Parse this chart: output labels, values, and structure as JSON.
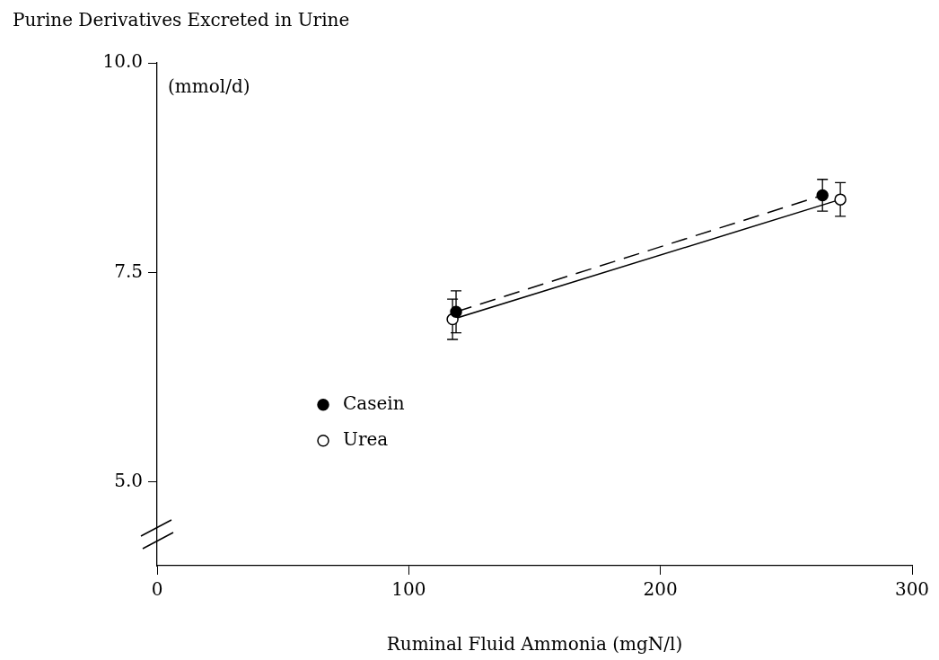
{
  "chart_data": {
    "type": "line",
    "title": "Purine Derivatives Excreted in Urine",
    "xlabel": "Ruminal Fluid Ammonia (mgN/l)",
    "ylabel": "(mmol/d)",
    "xlim": [
      0,
      300
    ],
    "xticks": [
      0,
      100,
      200,
      300
    ],
    "ylim": [
      4,
      10
    ],
    "yticks": [
      {
        "value": 5,
        "label": "5.0"
      },
      {
        "value": 7.5,
        "label": "7.5"
      },
      {
        "value": 10,
        "label": "10.0"
      }
    ],
    "legend": "left",
    "marker": "circle",
    "series": [
      {
        "name": "Casein",
        "color": "#000000",
        "colors": [
          "#000000",
          "#000000"
        ],
        "line_style": "dashed",
        "x": [
          118.8,
          264.4
        ],
        "values": [
          7.03,
          8.42
        ],
        "errors": [
          0.25,
          0.19
        ]
      },
      {
        "name": "Urea",
        "color": "#000000",
        "colors": [
          "#ffffff",
          "#ffffff"
        ],
        "line_style": "solid",
        "x": [
          117.4,
          271.5
        ],
        "values": [
          6.94,
          8.37
        ],
        "errors": [
          0.24,
          0.2
        ]
      }
    ]
  }
}
